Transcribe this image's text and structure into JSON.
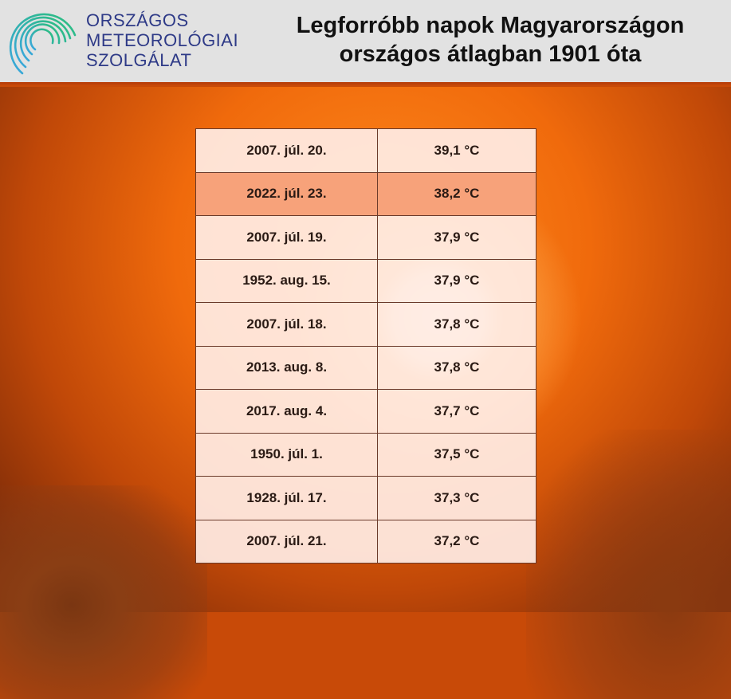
{
  "header": {
    "logo_lines": [
      "ORSZÁGOS",
      "METEOROLÓGIAI",
      "SZOLGÁLAT"
    ],
    "title_line1": "Legforróbb napok Magyarországon",
    "title_line2": "országos átlagban 1901 óta"
  },
  "colors": {
    "logo_text": "#2e3a87",
    "highlight_row": "#f7a27a",
    "header_bg": "#e2e2e2"
  },
  "chart_data": {
    "type": "table",
    "highlighted_row": 1,
    "rows": [
      {
        "date": "2007. júl. 20.",
        "temp": "39,1 °C"
      },
      {
        "date": "2022. júl. 23.",
        "temp": "38,2 °C"
      },
      {
        "date": "2007. júl. 19.",
        "temp": "37,9 °C"
      },
      {
        "date": "1952. aug. 15.",
        "temp": "37,9 °C"
      },
      {
        "date": "2007. júl. 18.",
        "temp": "37,8 °C"
      },
      {
        "date": "2013. aug. 8.",
        "temp": "37,8 °C"
      },
      {
        "date": "2017. aug. 4.",
        "temp": "37,7 °C"
      },
      {
        "date": "1950. júl. 1.",
        "temp": "37,5 °C"
      },
      {
        "date": "1928. júl. 17.",
        "temp": "37,3 °C"
      },
      {
        "date": "2007. júl. 21.",
        "temp": "37,2 °C"
      }
    ]
  }
}
